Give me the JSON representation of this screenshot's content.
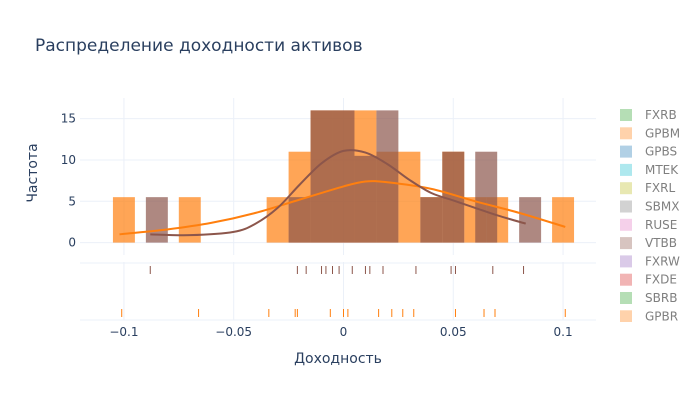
{
  "chart_data": {
    "type": "bar",
    "title": "Распределение доходности активов",
    "xlabel": "Доходность",
    "ylabel": "Частота",
    "xlim": [
      -0.12,
      0.115
    ],
    "ylim": [
      -1.5,
      17.5
    ],
    "xticks": [
      -0.1,
      -0.05,
      0,
      0.05,
      0.1
    ],
    "xtick_labels": [
      "−0.1",
      "−0.05",
      "0",
      "0.05",
      "0.1"
    ],
    "yticks": [
      0,
      5,
      10,
      15
    ],
    "grid": true,
    "barmode": "overlay",
    "legend_position": "right",
    "legend": [
      {
        "name": "FXRB",
        "color": "#2ca02c"
      },
      {
        "name": "GPBM",
        "color": "#ff7f0e"
      },
      {
        "name": "GPBS",
        "color": "#1f77b4"
      },
      {
        "name": "MTEK",
        "color": "#17becf"
      },
      {
        "name": "FXRL",
        "color": "#bcbd22"
      },
      {
        "name": "SBMX",
        "color": "#7f7f7f"
      },
      {
        "name": "RUSE",
        "color": "#e377c2"
      },
      {
        "name": "VTBB",
        "color": "#8c564b"
      },
      {
        "name": "FXRW",
        "color": "#9467bd"
      },
      {
        "name": "FXDE",
        "color": "#d62728"
      },
      {
        "name": "SBRB",
        "color": "#2ca02c"
      },
      {
        "name": "GPBR",
        "color": "#ff7f0e"
      }
    ],
    "series": [
      {
        "name": "GPBM",
        "color": "#ff7f0e",
        "bin_width": 0.01,
        "bins": [
          {
            "x": -0.1,
            "count": 5.5
          },
          {
            "x": -0.07,
            "count": 5.5
          },
          {
            "x": -0.03,
            "count": 5.5
          },
          {
            "x": -0.02,
            "count": 11
          },
          {
            "x": -0.01,
            "count": 16
          },
          {
            "x": 0.0,
            "count": 16
          },
          {
            "x": 0.01,
            "count": 16
          },
          {
            "x": 0.02,
            "count": 11
          },
          {
            "x": 0.03,
            "count": 11
          },
          {
            "x": 0.04,
            "count": 5.5
          },
          {
            "x": 0.05,
            "count": 11
          },
          {
            "x": 0.06,
            "count": 5.5
          },
          {
            "x": 0.07,
            "count": 5.5
          },
          {
            "x": 0.1,
            "count": 5.5
          }
        ],
        "kde": [
          [
            -0.102,
            1.0
          ],
          [
            -0.08,
            1.6
          ],
          [
            -0.06,
            2.4
          ],
          [
            -0.04,
            3.6
          ],
          [
            -0.02,
            5.2
          ],
          [
            0.0,
            6.8
          ],
          [
            0.01,
            7.4
          ],
          [
            0.02,
            7.3
          ],
          [
            0.04,
            6.5
          ],
          [
            0.06,
            5.0
          ],
          [
            0.08,
            3.6
          ],
          [
            0.101,
            1.9
          ]
        ],
        "rug": [
          -0.101,
          -0.066,
          -0.034,
          -0.022,
          -0.021,
          -0.006,
          0.0,
          0.002,
          0.016,
          0.022,
          0.027,
          0.032,
          0.051,
          0.064,
          0.069,
          0.101
        ]
      },
      {
        "name": "VTBB",
        "color": "#8c564b",
        "bin_width": 0.01,
        "bins": [
          {
            "x": -0.085,
            "count": 5.5
          },
          {
            "x": -0.02,
            "count": 5.5
          },
          {
            "x": -0.01,
            "count": 16
          },
          {
            "x": 0.0,
            "count": 16
          },
          {
            "x": 0.01,
            "count": 10.5
          },
          {
            "x": 0.02,
            "count": 16
          },
          {
            "x": 0.04,
            "count": 5.5
          },
          {
            "x": 0.05,
            "count": 11
          },
          {
            "x": 0.065,
            "count": 11
          },
          {
            "x": 0.085,
            "count": 5.5
          }
        ],
        "kde": [
          [
            -0.088,
            1.0
          ],
          [
            -0.07,
            0.9
          ],
          [
            -0.05,
            1.3
          ],
          [
            -0.04,
            2.3
          ],
          [
            -0.03,
            4.2
          ],
          [
            -0.02,
            7.0
          ],
          [
            -0.01,
            9.6
          ],
          [
            0.0,
            11.1
          ],
          [
            0.01,
            10.9
          ],
          [
            0.02,
            9.5
          ],
          [
            0.03,
            7.6
          ],
          [
            0.04,
            6.0
          ],
          [
            0.05,
            5.1
          ],
          [
            0.06,
            4.2
          ],
          [
            0.07,
            3.3
          ],
          [
            0.083,
            2.3
          ]
        ],
        "rug": [
          -0.088,
          -0.021,
          -0.017,
          -0.01,
          -0.008,
          -0.005,
          -0.002,
          0.004,
          0.01,
          0.012,
          0.018,
          0.033,
          0.049,
          0.051,
          0.068,
          0.082
        ]
      }
    ]
  }
}
